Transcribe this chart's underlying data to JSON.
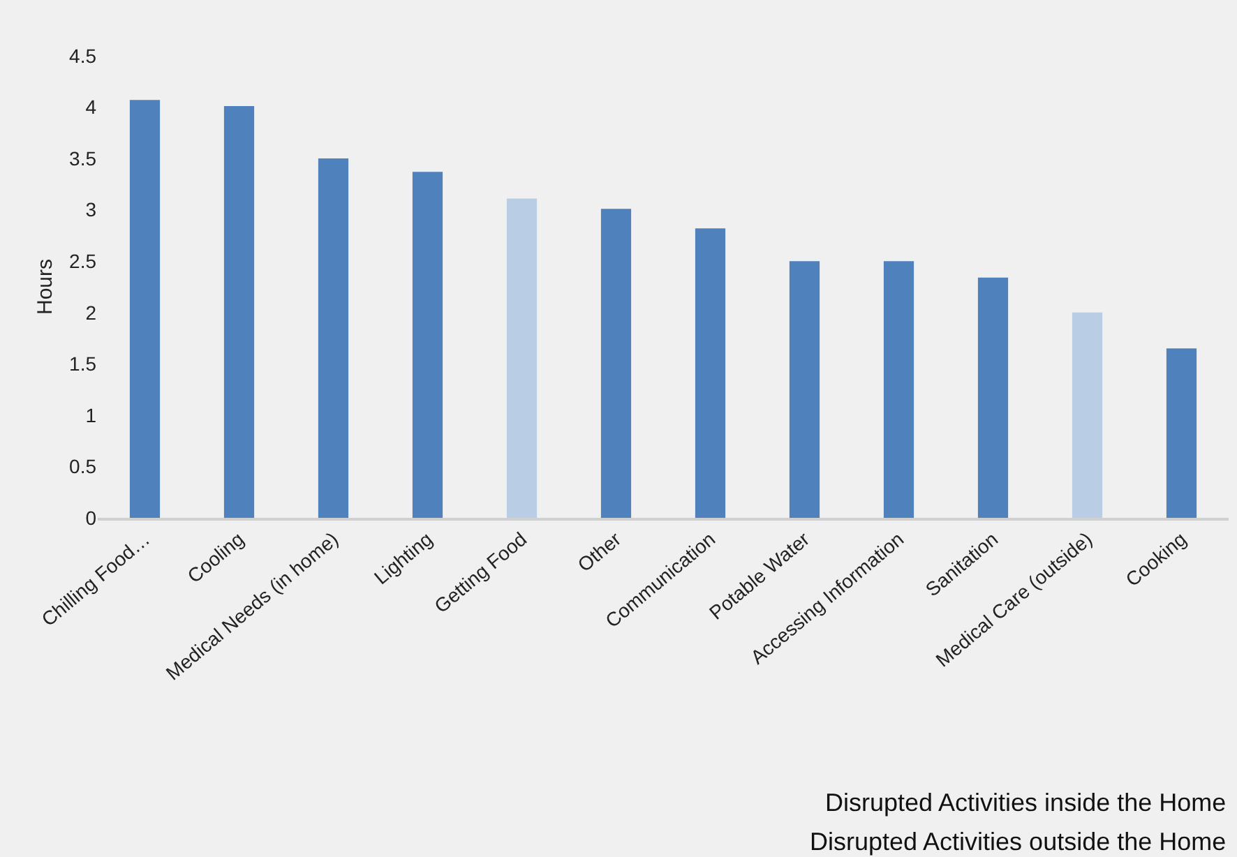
{
  "chart_data": {
    "type": "bar",
    "ylabel": "Hours",
    "categories": [
      "Chilling Food…",
      "Cooling",
      "Medical Needs (in home)",
      "Lighting",
      "Getting Food",
      "Other",
      "Communication",
      "Potable Water",
      "Accessing Information",
      "Sanitation",
      "Medical Care (outside)",
      "Cooking"
    ],
    "values": [
      4.07,
      4.01,
      3.5,
      3.37,
      3.11,
      3.01,
      2.82,
      2.5,
      2.5,
      2.34,
      2.0,
      1.65
    ],
    "colors": [
      "#4f81bd",
      "#4f81bd",
      "#4f81bd",
      "#4f81bd",
      "#b9cde5",
      "#4f81bd",
      "#4f81bd",
      "#4f81bd",
      "#4f81bd",
      "#4f81bd",
      "#b9cde5",
      "#4f81bd"
    ],
    "ylim": [
      0,
      4.5
    ],
    "yticks": [
      0,
      0.5,
      1,
      1.5,
      2,
      2.5,
      3,
      3.5,
      4,
      4.5
    ],
    "grid": false,
    "annotations": [
      "Disrupted Activities inside the Home",
      "Disrupted Activities outside the Home"
    ]
  }
}
